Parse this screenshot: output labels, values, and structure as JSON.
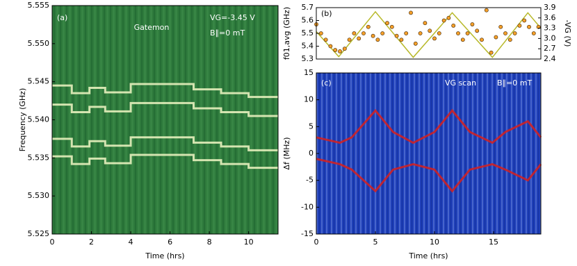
{
  "chart_data": [
    {
      "type": "line",
      "background": "#2e7a3c",
      "xlabel": "Time (hrs)",
      "ylabel": "Frequency (GHz)",
      "annotations": [
        "(a)",
        "Gatemon",
        "VG=-3.45 V",
        "B∥=0 mT"
      ],
      "xlim": [
        0,
        11.5
      ],
      "xticks": [
        0,
        2,
        4,
        6,
        8,
        10
      ],
      "ylim": [
        5.525,
        5.555
      ],
      "yticks": [
        5.525,
        {
          "value": 5.53,
          "label": "5.530"
        },
        5.535,
        {
          "value": 5.54,
          "label": "5.540"
        },
        5.545,
        {
          "value": 5.55,
          "label": "5.550"
        },
        5.555
      ],
      "series": [
        {
          "color": "#f1f7c4",
          "x": [
            0,
            1,
            1,
            1.9,
            1.9,
            2.7,
            2.7,
            4,
            4,
            7.2,
            7.2,
            8.6,
            8.6,
            10,
            10,
            11.5
          ],
          "values": [
            5.5445,
            5.5445,
            5.5435,
            5.5435,
            5.5442,
            5.5442,
            5.5436,
            5.5436,
            5.5447,
            5.5447,
            5.544,
            5.544,
            5.5435,
            5.5435,
            5.543,
            5.543
          ]
        },
        {
          "color": "#f1f7c4",
          "x": [
            0,
            1,
            1,
            1.9,
            1.9,
            2.7,
            2.7,
            4,
            4,
            7.2,
            7.2,
            8.6,
            8.6,
            10,
            10,
            11.5
          ],
          "values": [
            5.542,
            5.542,
            5.541,
            5.541,
            5.5417,
            5.5417,
            5.5411,
            5.5411,
            5.5422,
            5.5422,
            5.5415,
            5.5415,
            5.541,
            5.541,
            5.5405,
            5.5405
          ]
        },
        {
          "color": "#f1f7c4",
          "x": [
            0,
            1,
            1,
            1.9,
            1.9,
            2.7,
            2.7,
            4,
            4,
            7.2,
            7.2,
            8.6,
            8.6,
            10,
            10,
            11.5
          ],
          "values": [
            5.5375,
            5.5375,
            5.5365,
            5.5365,
            5.5372,
            5.5372,
            5.5366,
            5.5366,
            5.5377,
            5.5377,
            5.537,
            5.537,
            5.5365,
            5.5365,
            5.536,
            5.536
          ]
        },
        {
          "color": "#f1f7c4",
          "x": [
            0,
            1,
            1,
            1.9,
            1.9,
            2.7,
            2.7,
            4,
            4,
            7.2,
            7.2,
            8.6,
            8.6,
            10,
            10,
            11.5
          ],
          "values": [
            5.5352,
            5.5352,
            5.5342,
            5.5342,
            5.5349,
            5.5349,
            5.5343,
            5.5343,
            5.5354,
            5.5354,
            5.5347,
            5.5347,
            5.5342,
            5.5342,
            5.5337,
            5.5337
          ]
        }
      ]
    },
    {
      "type": "combo",
      "background": "#ffffff",
      "ylabel": "f01,avg (GHz)",
      "y2label": "-VG (V)",
      "annotations": [
        "(b)"
      ],
      "xlim": [
        0,
        19
      ],
      "ylim": [
        5.3,
        5.7
      ],
      "yticks": [
        5.3,
        5.4,
        5.5,
        5.6,
        5.7
      ],
      "y2lim": [
        2.4,
        3.9
      ],
      "y2ticks": [
        2.4,
        2.7,
        {
          "value": 3,
          "label": "3.0"
        },
        3.3,
        3.6,
        3.9
      ],
      "series": [
        {
          "type": "line",
          "axis": "y2",
          "color": "#b8b92a",
          "x": [
            0,
            1.9,
            5,
            8.2,
            11.5,
            14.9,
            17.9,
            19
          ],
          "values": [
            3.2,
            2.47,
            3.78,
            2.45,
            3.75,
            2.45,
            3.75,
            3.3
          ]
        },
        {
          "type": "scatter",
          "color": "#f5a02a",
          "x": [
            0,
            0.4,
            0.8,
            1.2,
            1.6,
            2,
            2.4,
            2.8,
            3.2,
            3.6,
            4,
            4.4,
            4.8,
            5.2,
            5.6,
            6,
            6.4,
            6.8,
            7.2,
            7.6,
            8,
            8.4,
            8.8,
            9.2,
            9.6,
            10,
            10.4,
            10.8,
            11.2,
            11.6,
            12,
            12.4,
            12.8,
            13.2,
            13.6,
            14,
            14.4,
            14.8,
            15.2,
            15.6,
            16,
            16.4,
            16.8,
            17.2,
            17.6,
            18,
            18.4,
            18.8
          ],
          "values": [
            5.57,
            5.5,
            5.45,
            5.4,
            5.37,
            5.36,
            5.38,
            5.45,
            5.5,
            5.46,
            5.5,
            5.55,
            5.48,
            5.45,
            5.5,
            5.58,
            5.55,
            5.48,
            5.45,
            5.5,
            5.66,
            5.42,
            5.5,
            5.58,
            5.52,
            5.46,
            5.5,
            5.6,
            5.62,
            5.56,
            5.5,
            5.45,
            5.5,
            5.57,
            5.52,
            5.45,
            5.68,
            5.35,
            5.47,
            5.55,
            5.5,
            5.45,
            5.5,
            5.56,
            5.6,
            5.55,
            5.5,
            5.55
          ]
        }
      ]
    },
    {
      "type": "line",
      "background": "#1f3fb8",
      "xlabel": "Time (hrs)",
      "ylabel": "Δf (MHz)",
      "annotations": [
        "(c)",
        "VG scan",
        "B∥=0 mT"
      ],
      "xlim": [
        0,
        19
      ],
      "xticks": [
        0,
        5,
        10,
        15
      ],
      "ylim": [
        -15,
        15
      ],
      "yticks": [
        -15,
        -10,
        -5,
        0,
        5,
        10,
        15
      ],
      "series": [
        {
          "color": "#d8201c",
          "x": [
            0,
            2,
            3,
            5,
            6.5,
            8.2,
            10,
            11.5,
            13,
            14.9,
            16,
            17.9,
            19
          ],
          "values": [
            3,
            2,
            3,
            8,
            4,
            2,
            4,
            8,
            4,
            2,
            4,
            6,
            3
          ]
        },
        {
          "color": "#d8201c",
          "x": [
            0,
            2,
            3,
            5,
            6.5,
            8.2,
            10,
            11.5,
            13,
            14.9,
            16,
            17.9,
            19
          ],
          "values": [
            -1,
            -2,
            -3,
            -7,
            -3,
            -2,
            -3,
            -7,
            -3,
            -2,
            -3,
            -5,
            -2
          ]
        }
      ]
    }
  ]
}
